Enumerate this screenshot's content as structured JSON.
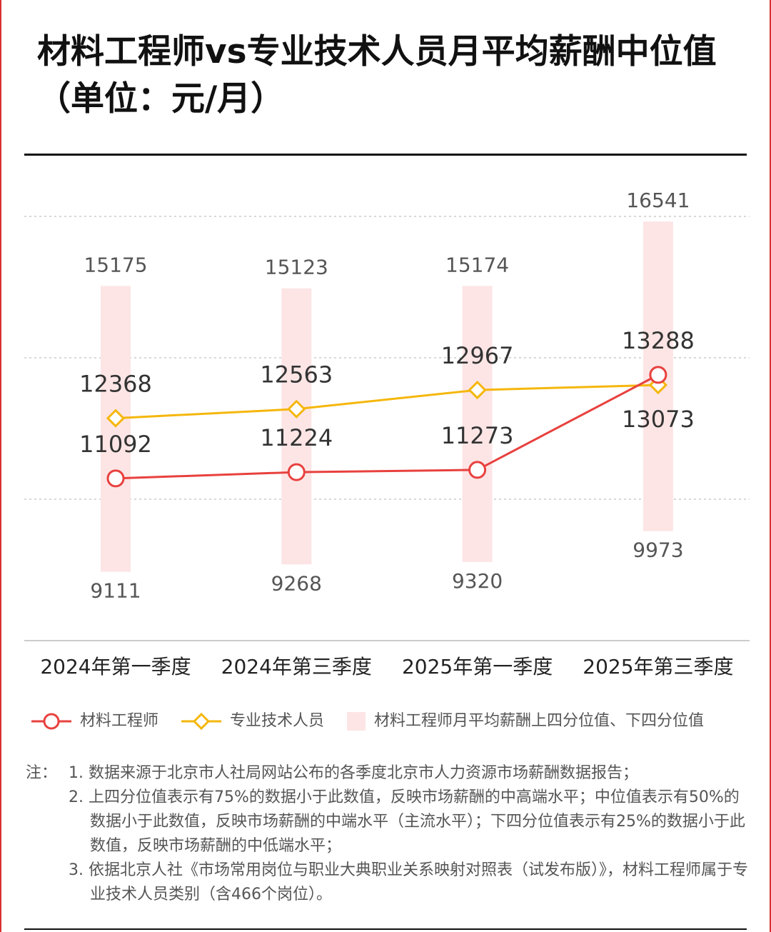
{
  "title": "材料工程师vs专业技术人员月平均薪酬中位值（单位：元/月）",
  "chart_data": {
    "type": "range-line",
    "categories": [
      "2024年第一季度",
      "2024年第三季度",
      "2025年第一季度",
      "2025年第三季度"
    ],
    "series": [
      {
        "name": "材料工程师",
        "color": "#e8413e",
        "marker": "circle",
        "values": [
          11092,
          11224,
          11273,
          13288
        ]
      },
      {
        "name": "专业技术人员",
        "color": "#f5b70c",
        "marker": "diamond",
        "values": [
          12368,
          12563,
          12967,
          13073
        ]
      }
    ],
    "range": {
      "name": "材料工程师月平均薪酬上四分位值、下四分位值",
      "color": "#fde5e5",
      "low": [
        9111,
        9268,
        9320,
        9973
      ],
      "high": [
        15175,
        15123,
        15174,
        16541
      ]
    },
    "ylim": [
      8000,
      17800
    ]
  },
  "notes": {
    "label": "注：",
    "items": [
      "1. 数据来源于北京市人社局网站公布的各季度北京市人力资源市场薪酬数据报告；",
      "2. 上四分位值表示有75%的数据小于此数值，反映市场薪酬的中高端水平；中位值表示有50%的数据小于此数值，反映市场薪酬的中端水平（主流水平）；下四分位值表示有25%的数据小于此数值，反映市场薪酬的中低端水平；",
      "3. 依据北京人社《市场常用岗位与职业大典职业关系映射对照表（试发布版）》，材料工程师属于专业技术人员类别（含466个岗位）。"
    ]
  }
}
